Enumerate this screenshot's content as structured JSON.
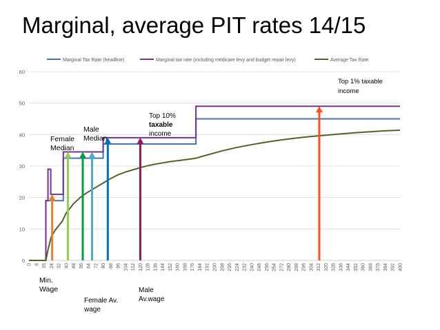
{
  "slide": {
    "title": "Marginal, average PIT rates 14/15"
  },
  "colors": {
    "marginal_headline": "#4472c4",
    "marginal_incl_levies": "#7030a0",
    "average": "#4f6228",
    "axis_text": "#595959",
    "gridline": "#d9d9d9"
  },
  "chart_data": {
    "type": "line",
    "title": "",
    "xlabel": "",
    "ylabel": "",
    "xlim": [
      0,
      400
    ],
    "ylim": [
      0,
      60
    ],
    "y_ticks": [
      0,
      10,
      20,
      30,
      40,
      50,
      60
    ],
    "x_ticks": [
      0,
      8,
      16,
      24,
      32,
      40,
      48,
      56,
      64,
      72,
      80,
      88,
      96,
      104,
      112,
      120,
      128,
      136,
      144,
      152,
      160,
      168,
      176,
      184,
      192,
      200,
      208,
      216,
      224,
      232,
      240,
      248,
      256,
      264,
      272,
      280,
      288,
      296,
      304,
      312,
      320,
      328,
      336,
      344,
      352,
      360,
      368,
      376,
      384,
      392,
      400
    ],
    "x_tick_labels": [
      "0",
      "8",
      "16",
      "24",
      "32",
      "40",
      "48",
      "56",
      "64",
      "72",
      "80",
      "88",
      "96",
      "104",
      "112",
      "120",
      "128",
      "136",
      "144",
      "152",
      "160",
      "168",
      "176",
      "184",
      "192",
      "200",
      "208",
      "216",
      "224",
      "232",
      "240",
      "248",
      "256",
      "264",
      "272",
      "280",
      "288",
      "296",
      "304",
      "312",
      "320",
      "328",
      "336",
      "344",
      "352",
      "360",
      "368",
      "376",
      "384",
      "392",
      "400"
    ],
    "grid": "horizontal",
    "legend_position": "top",
    "series": [
      {
        "name": "Marginal Tax Rate (headline)",
        "color": "#4472c4",
        "step": true,
        "points": [
          [
            0,
            0
          ],
          [
            18.2,
            0
          ],
          [
            18.2,
            19
          ],
          [
            37,
            19
          ],
          [
            37,
            32.5
          ],
          [
            80,
            32.5
          ],
          [
            80,
            37
          ],
          [
            180,
            37
          ],
          [
            180,
            45
          ],
          [
            400,
            45
          ]
        ]
      },
      {
        "name": "Marginal tax rate (including medicare levy and budget repair levy)",
        "color": "#7030a0",
        "step": true,
        "points": [
          [
            0,
            0
          ],
          [
            18.2,
            0
          ],
          [
            18.2,
            19
          ],
          [
            20.5,
            19
          ],
          [
            20.5,
            29
          ],
          [
            23.5,
            29
          ],
          [
            23.5,
            21
          ],
          [
            37,
            21
          ],
          [
            37,
            34.5
          ],
          [
            80,
            34.5
          ],
          [
            80,
            39
          ],
          [
            180,
            39
          ],
          [
            180,
            49
          ],
          [
            400,
            49
          ]
        ]
      },
      {
        "name": "Average Tax Rate",
        "color": "#4f6228",
        "step": false,
        "points": [
          [
            0,
            0
          ],
          [
            18.2,
            0
          ],
          [
            21,
            4
          ],
          [
            24,
            7.5
          ],
          [
            28,
            9.5
          ],
          [
            32,
            11
          ],
          [
            36,
            12.5
          ],
          [
            40,
            15
          ],
          [
            48,
            18
          ],
          [
            56,
            20.2
          ],
          [
            64,
            21.8
          ],
          [
            72,
            23.2
          ],
          [
            80,
            24.6
          ],
          [
            88,
            26
          ],
          [
            96,
            27.2
          ],
          [
            104,
            28.1
          ],
          [
            112,
            28.8
          ],
          [
            120,
            29.5
          ],
          [
            128,
            30.1
          ],
          [
            136,
            30.6
          ],
          [
            144,
            31
          ],
          [
            152,
            31.4
          ],
          [
            160,
            31.7
          ],
          [
            168,
            32
          ],
          [
            176,
            32.3
          ],
          [
            180,
            32.5
          ],
          [
            192,
            33.5
          ],
          [
            208,
            34.8
          ],
          [
            224,
            35.9
          ],
          [
            240,
            36.8
          ],
          [
            256,
            37.6
          ],
          [
            272,
            38.3
          ],
          [
            288,
            38.9
          ],
          [
            304,
            39.4
          ],
          [
            320,
            39.8
          ],
          [
            336,
            40.2
          ],
          [
            352,
            40.6
          ],
          [
            368,
            40.9
          ],
          [
            384,
            41.2
          ],
          [
            400,
            41.4
          ]
        ]
      }
    ],
    "markers": [
      {
        "x": 25,
        "y_top": 21,
        "color": "#ed7d31"
      },
      {
        "x": 42,
        "y_top": 34.5,
        "color": "#92d050"
      },
      {
        "x": 58,
        "y_top": 34.5,
        "color": "#00a03c"
      },
      {
        "x": 68,
        "y_top": 34.5,
        "color": "#4bacc6"
      },
      {
        "x": 85,
        "y_top": 39,
        "color": "#0070c0"
      },
      {
        "x": 120,
        "y_top": 39,
        "color": "#8b1a5a"
      },
      {
        "x": 313,
        "y_top": 49,
        "color": "#ff4f1a"
      }
    ],
    "annotations": [
      {
        "id": "min-wage",
        "lines": [
          "Min.",
          "Wage"
        ],
        "x": 24,
        "placement": "below"
      },
      {
        "id": "female-median",
        "lines": [
          "Female",
          "Median"
        ],
        "x": 42,
        "placement": "above"
      },
      {
        "id": "male-median",
        "lines": [
          "Male",
          "Median"
        ],
        "x": 68,
        "placement": "above"
      },
      {
        "id": "female-av-wage",
        "lines": [
          "Female Av.",
          "wage"
        ],
        "x": 58,
        "placement": "below"
      },
      {
        "id": "male-av-wage",
        "lines": [
          "Male",
          "Av.wage"
        ],
        "x": 85,
        "placement": "below"
      },
      {
        "id": "top-10",
        "lines": [
          "Top 10%",
          "taxable",
          "income"
        ],
        "x": 120,
        "placement": "above"
      },
      {
        "id": "top-1",
        "lines": [
          "Top 1% taxable",
          "income"
        ],
        "x": 313,
        "placement": "above"
      }
    ]
  }
}
